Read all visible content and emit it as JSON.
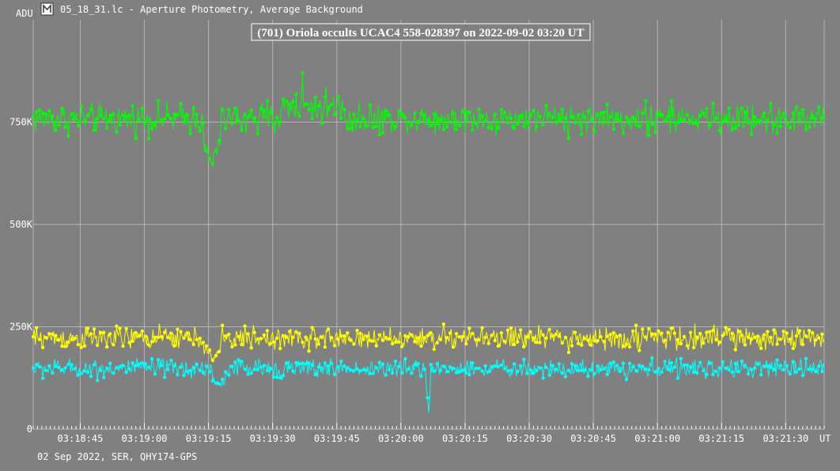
{
  "window": {
    "title": "05_18_31.lc - Aperture Photometry, Average Background",
    "icon": "lightcurve-app-icon"
  },
  "footer": {
    "caption": "02 Sep 2022, SER, QHY174-GPS"
  },
  "colors": {
    "background": "#808080",
    "grid": "#b4b4b4",
    "target": "#00ffff",
    "comparison1": "#ffff00",
    "comparison2": "#00ff00"
  },
  "chart_data": {
    "type": "line",
    "title": "(701) Oriola occults UCAC4 558-028397 on 2022-09-02 03:20 UT",
    "xlabel": "UT",
    "ylabel": "ADU",
    "x_range": [
      "03:18:34",
      "03:21:39"
    ],
    "ylim": [
      0,
      1000000
    ],
    "x_ticks": [
      "03:18:45",
      "03:19:00",
      "03:19:15",
      "03:19:30",
      "03:19:45",
      "03:20:00",
      "03:20:15",
      "03:20:30",
      "03:20:45",
      "03:21:00",
      "03:21:15",
      "03:21:30"
    ],
    "y_ticks": [
      {
        "value": 0,
        "label": "0"
      },
      {
        "value": 250000,
        "label": "250K"
      },
      {
        "value": 500000,
        "label": "500K"
      },
      {
        "value": 750000,
        "label": "750K"
      }
    ],
    "grid": true,
    "legend": "none",
    "series": [
      {
        "color": "#00ff00",
        "sample_interval_s": 0.25,
        "baseline": 758000,
        "noise": 40000,
        "features": [
          {
            "start": "03:19:14",
            "end": "03:19:18",
            "min": 640000
          },
          {
            "start": "03:19:32",
            "end": "03:19:47",
            "offset": 30000
          },
          {
            "start": "03:19:37",
            "peak": 870000
          }
        ]
      },
      {
        "color": "#ffff00",
        "sample_interval_s": 0.25,
        "baseline": 222000,
        "noise": 30000,
        "features": [
          {
            "start": "03:19:14",
            "end": "03:19:18",
            "min": 165000
          }
        ]
      },
      {
        "color": "#00ffff",
        "sample_interval_s": 0.25,
        "baseline": 148000,
        "noise": 25000,
        "features": [
          {
            "start": "03:20:06.0",
            "end": "03:20:07.0",
            "min": 22000
          },
          {
            "start": "03:19:16",
            "end": "03:19:19",
            "min": 98000
          }
        ]
      }
    ]
  }
}
